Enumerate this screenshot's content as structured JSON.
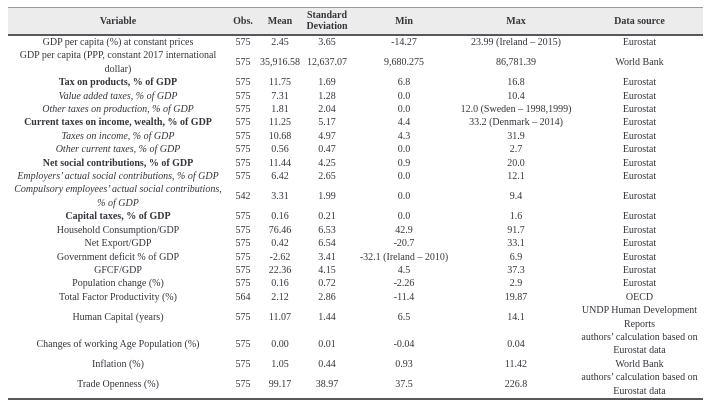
{
  "table": {
    "title": "descriptive-statistics-table",
    "colors": {
      "header_bg": "#ececec",
      "text": "#35353d",
      "rule_dark": "#58585c",
      "rule_light": "#9b9b9b"
    },
    "columns": [
      {
        "key": "variable",
        "label": "Variable"
      },
      {
        "key": "obs",
        "label": "Obs."
      },
      {
        "key": "mean",
        "label": "Mean"
      },
      {
        "key": "sd",
        "label": "Standard Deviation"
      },
      {
        "key": "min",
        "label": "Min"
      },
      {
        "key": "max",
        "label": "Max"
      },
      {
        "key": "source",
        "label": "Data source"
      }
    ],
    "rows": [
      {
        "variable": "GDP per capita (%) at constant prices",
        "style": "normal",
        "obs": "575",
        "mean": "2.45",
        "sd": "3.65",
        "min": "-14.27",
        "max": "23.99 (Ireland – 2015)",
        "source": "Eurostat"
      },
      {
        "variable": "GDP per capita (PPP, constant 2017 international dollar)",
        "style": "normal",
        "obs": "575",
        "mean": "35,916.58",
        "sd": "12,637.07",
        "min": "9,680.275",
        "max": "86,781.39",
        "source": "World Bank"
      },
      {
        "variable": "Tax on products, % of GDP",
        "style": "bold",
        "obs": "575",
        "mean": "11.75",
        "sd": "1.69",
        "min": "6.8",
        "max": "16.8",
        "source": "Eurostat"
      },
      {
        "variable": "Value added taxes, % of GDP",
        "style": "italic",
        "obs": "575",
        "mean": "7.31",
        "sd": "1.28",
        "min": "0.0",
        "max": "10.4",
        "source": "Eurostat"
      },
      {
        "variable": "Other taxes on production, % of GDP",
        "style": "italic",
        "obs": "575",
        "mean": "1.81",
        "sd": "2.04",
        "min": "0.0",
        "max": "12.0 (Sweden – 1998,1999)",
        "source": "Eurostat"
      },
      {
        "variable": "Current taxes on income, wealth, % of GDP",
        "style": "bold",
        "obs": "575",
        "mean": "11.25",
        "sd": "5.17",
        "min": "4.4",
        "max": "33.2 (Denmark – 2014)",
        "source": "Eurostat"
      },
      {
        "variable": "Taxes on income, % of GDP",
        "style": "italic",
        "obs": "575",
        "mean": "10.68",
        "sd": "4.97",
        "min": "4.3",
        "max": "31.9",
        "source": "Eurostat"
      },
      {
        "variable": "Other current taxes, % of GDP",
        "style": "italic",
        "obs": "575",
        "mean": "0.56",
        "sd": "0.47",
        "min": "0.0",
        "max": "2.7",
        "source": "Eurostat"
      },
      {
        "variable": "Net social contributions, % of GDP",
        "style": "bold",
        "obs": "575",
        "mean": "11.44",
        "sd": "4.25",
        "min": "0.9",
        "max": "20.0",
        "source": "Eurostat"
      },
      {
        "variable": "Employers’ actual social contributions, % of GDP",
        "style": "italic",
        "obs": "575",
        "mean": "6.42",
        "sd": "2.65",
        "min": "0.0",
        "max": "12.1",
        "source": "Eurostat"
      },
      {
        "variable": "Compulsory employees’ actual social contributions, % of GDP",
        "style": "italic",
        "obs": "542",
        "mean": "3.31",
        "sd": "1.99",
        "min": "0.0",
        "max": "9.4",
        "source": "Eurostat"
      },
      {
        "variable": "Capital taxes, % of GDP",
        "style": "bold",
        "obs": "575",
        "mean": "0.16",
        "sd": "0.21",
        "min": "0.0",
        "max": "1.6",
        "source": "Eurostat"
      },
      {
        "variable": "Household Consumption/GDP",
        "style": "normal",
        "obs": "575",
        "mean": "76.46",
        "sd": "6.53",
        "min": "42.9",
        "max": "91.7",
        "source": "Eurostat"
      },
      {
        "variable": "Net Export/GDP",
        "style": "normal",
        "obs": "575",
        "mean": "0.42",
        "sd": "6.54",
        "min": "-20.7",
        "max": "33.1",
        "source": "Eurostat"
      },
      {
        "variable": "Government deficit % of GDP",
        "style": "normal",
        "obs": "575",
        "mean": "-2.62",
        "sd": "3.41",
        "min": "-32.1 (Ireland – 2010)",
        "max": "6.9",
        "source": "Eurostat"
      },
      {
        "variable": "GFCF/GDP",
        "style": "normal",
        "obs": "575",
        "mean": "22.36",
        "sd": "4.15",
        "min": "4.5",
        "max": "37.3",
        "source": "Eurostat"
      },
      {
        "variable": "Population change (%)",
        "style": "normal",
        "obs": "575",
        "mean": "0.16",
        "sd": "0.72",
        "min": "-2.26",
        "max": "2.9",
        "source": "Eurostat"
      },
      {
        "variable": "Total Factor Productivity (%)",
        "style": "normal",
        "obs": "564",
        "mean": "2.12",
        "sd": "2.86",
        "min": "-11.4",
        "max": "19.87",
        "source": "OECD"
      },
      {
        "variable": "Human Capital (years)",
        "style": "normal",
        "obs": "575",
        "mean": "11.07",
        "sd": "1.44",
        "min": "6.5",
        "max": "14.1",
        "source": "UNDP Human Development Reports"
      },
      {
        "variable": "Changes of working Age Population (%)",
        "style": "normal",
        "obs": "575",
        "mean": "0.00",
        "sd": "0.01",
        "min": "-0.04",
        "max": "0.04",
        "source": "authors’ calculation based on Eurostat data"
      },
      {
        "variable": "Inflation (%)",
        "style": "normal",
        "obs": "575",
        "mean": "1.05",
        "sd": "0.44",
        "min": "0.93",
        "max": "11.42",
        "source": "World Bank"
      },
      {
        "variable": "Trade Openness (%)",
        "style": "normal",
        "obs": "575",
        "mean": "99.17",
        "sd": "38.97",
        "min": "37.5",
        "max": "226.8",
        "source": "authors’ calculation based on Eurostat data"
      }
    ]
  }
}
